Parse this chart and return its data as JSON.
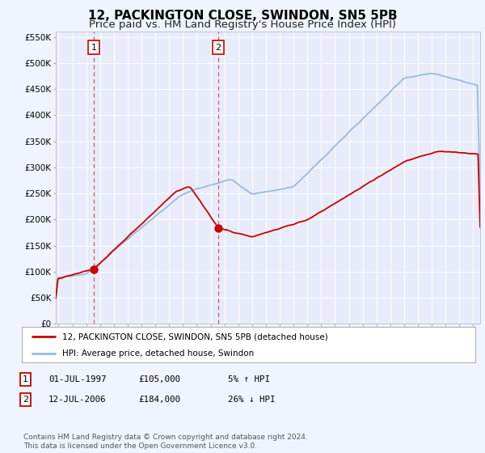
{
  "title": "12, PACKINGTON CLOSE, SWINDON, SN5 5PB",
  "subtitle": "Price paid vs. HM Land Registry's House Price Index (HPI)",
  "title_fontsize": 11,
  "subtitle_fontsize": 9.5,
  "ylim": [
    0,
    560000
  ],
  "yticks": [
    0,
    50000,
    100000,
    150000,
    200000,
    250000,
    300000,
    350000,
    400000,
    450000,
    500000,
    550000
  ],
  "ytick_labels": [
    "£0",
    "£50K",
    "£100K",
    "£150K",
    "£200K",
    "£250K",
    "£300K",
    "£350K",
    "£400K",
    "£450K",
    "£500K",
    "£550K"
  ],
  "fig_bg": "#f0f4ff",
  "plot_bg": "#e8ecfa",
  "grid_color": "#ffffff",
  "red_line_color": "#cc0000",
  "blue_line_color": "#99bbdd",
  "sale1_x": 1997.54,
  "sale1_y": 105000,
  "sale2_x": 2006.54,
  "sale2_y": 184000,
  "legend_label_red": "12, PACKINGTON CLOSE, SWINDON, SN5 5PB (detached house)",
  "legend_label_blue": "HPI: Average price, detached house, Swindon",
  "table_row1": [
    "1",
    "01-JUL-1997",
    "£105,000",
    "5% ↑ HPI"
  ],
  "table_row2": [
    "2",
    "12-JUL-2006",
    "£184,000",
    "26% ↓ HPI"
  ],
  "footnote": "Contains HM Land Registry data © Crown copyright and database right 2024.\nThis data is licensed under the Open Government Licence v3.0.",
  "xmin": 1994.8,
  "xmax": 2025.5
}
